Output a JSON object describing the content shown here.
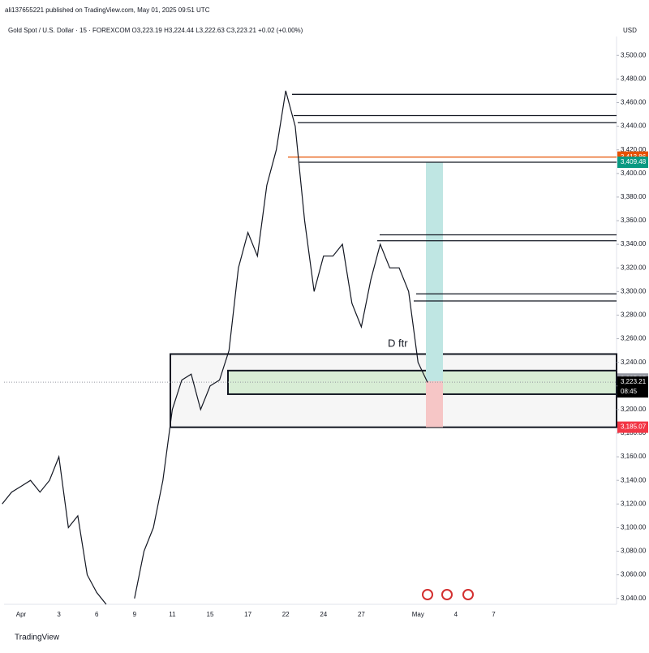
{
  "header": {
    "published": "ali137655221 published on TradingView.com, May 01, 2025 09:51 UTC",
    "legend": "Gold Spot / U.S. Dollar · 15 · FOREXCOM  O3,223.19  H3,224.44  L3,222.63  C3,223.21  +0.02 (+0.00%)",
    "currency": "USD"
  },
  "footer": {
    "brand": "TradingView"
  },
  "chart_data": {
    "type": "line",
    "categories": [
      null,
      null,
      "Apr",
      null,
      null,
      null,
      "3",
      null,
      null,
      null,
      "6",
      null,
      null,
      null,
      "9",
      null,
      null,
      null,
      "11",
      null,
      null,
      null,
      "15",
      null,
      null,
      null,
      "17",
      null,
      null,
      null,
      "22",
      null,
      null,
      null,
      "24",
      null,
      null,
      null,
      "27",
      null,
      null,
      null,
      null,
      null,
      "May",
      null,
      null,
      null,
      "4",
      null,
      null,
      null,
      "7"
    ],
    "series": [
      {
        "color": "#131722",
        "values": [
          3120,
          3130,
          3135,
          3140,
          3130,
          3140,
          3160,
          3100,
          3110,
          3060,
          3045,
          3035,
          null,
          null,
          3040,
          3080,
          3100,
          3140,
          3200,
          3225,
          3230,
          3200,
          3220,
          3225,
          3250,
          3320,
          3350,
          3330,
          3390,
          3420,
          3470,
          3440,
          3360,
          3300,
          3330,
          3330,
          3340,
          3290,
          3270,
          3310,
          3340,
          3320,
          3320,
          3300,
          3240,
          3223,
          null,
          null,
          null,
          null,
          null,
          null,
          null
        ]
      }
    ],
    "ylim": [
      3035,
      3516
    ],
    "yticks": [
      {
        "value": 3040,
        "label": "3,040.00"
      },
      {
        "value": 3060,
        "label": "3,060.00"
      },
      {
        "value": 3080,
        "label": "3,080.00"
      },
      {
        "value": 3100,
        "label": "3,100.00"
      },
      {
        "value": 3120,
        "label": "3,120.00"
      },
      {
        "value": 3140,
        "label": "3,140.00"
      },
      {
        "value": 3160,
        "label": "3,160.00"
      },
      {
        "value": 3180,
        "label": "3,180.00"
      },
      {
        "value": 3200,
        "label": "3,200.00"
      },
      {
        "value": 3220,
        "label": "3,220.00"
      },
      {
        "value": 3240,
        "label": "3,240.00"
      },
      {
        "value": 3260,
        "label": "3,260.00"
      },
      {
        "value": 3280,
        "label": "3,280.00"
      },
      {
        "value": 3300,
        "label": "3,300.00"
      },
      {
        "value": 3320,
        "label": "3,320.00"
      },
      {
        "value": 3340,
        "label": "3,340.00"
      },
      {
        "value": 3360,
        "label": "3,360.00"
      },
      {
        "value": 3380,
        "label": "3,380.00"
      },
      {
        "value": 3400,
        "label": "3,400.00"
      },
      {
        "value": 3420,
        "label": "3,420.00"
      },
      {
        "value": 3440,
        "label": "3,440.00"
      },
      {
        "value": 3460,
        "label": "3,460.00"
      },
      {
        "value": 3480,
        "label": "3,480.00"
      },
      {
        "value": 3500,
        "label": "3,500.00"
      }
    ],
    "grid": false,
    "horizontal_lines": [
      {
        "value": 3467,
        "color": "#131722"
      },
      {
        "value": 3449,
        "color": "#131722"
      },
      {
        "value": 3443,
        "color": "#131722"
      },
      {
        "value": 3413.86,
        "color": "#e65100"
      },
      {
        "value": 3409.48,
        "color": "#131722"
      },
      {
        "value": 3348,
        "color": "#131722"
      },
      {
        "value": 3343,
        "color": "#131722"
      },
      {
        "value": 3298,
        "color": "#131722"
      },
      {
        "value": 3292,
        "color": "#131722"
      }
    ],
    "zones": [
      {
        "low": 3185,
        "high": 3247,
        "color": "#f6f6f6"
      },
      {
        "low": 3213,
        "high": 3233,
        "color": "#d8edd5"
      }
    ],
    "position": {
      "target": 3409.48,
      "entry": 3224,
      "stop": 3185.07,
      "profit_color": "#bfe6e3",
      "loss_color": "#f6c6c6"
    },
    "current_price": 3223.21,
    "price_labels": [
      {
        "value": 3413.86,
        "label": "3,413.86",
        "color": "#e65100"
      },
      {
        "value": 3409.48,
        "label": "3,409.48",
        "color": "#089981"
      },
      {
        "value": 3225.85,
        "label": "3,225.85",
        "color": "#9598a1"
      },
      {
        "value": 3223.21,
        "label": "3,223.21",
        "color": "#000000"
      },
      {
        "value": 3185.07,
        "label": "3,185.07",
        "color": "#f23645"
      }
    ],
    "countdown": "08:45",
    "annotation": "D ftr"
  }
}
